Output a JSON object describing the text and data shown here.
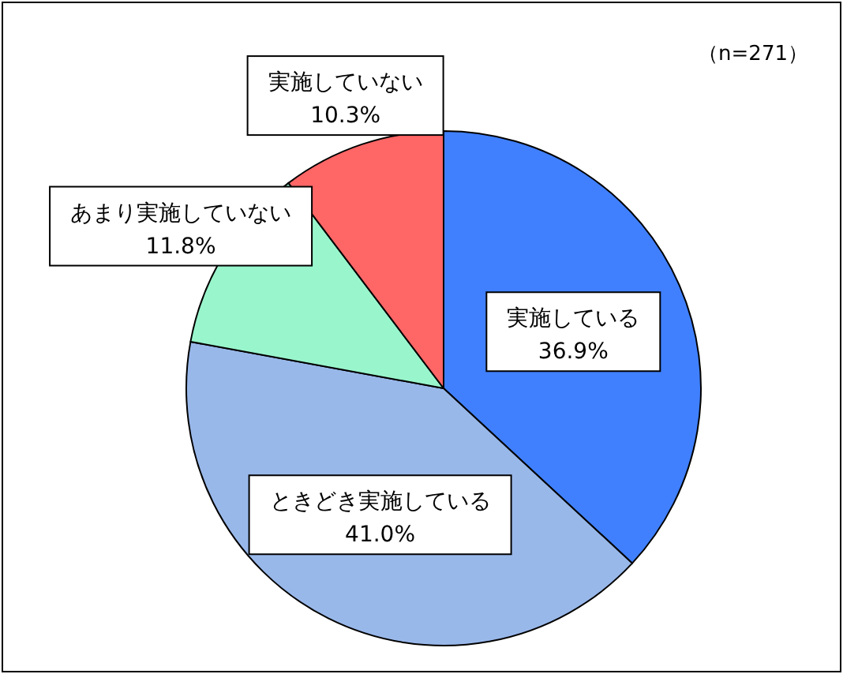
{
  "chart_data": {
    "type": "pie",
    "categories": [
      "実施している",
      "ときどき実施している",
      "あまり実施していない",
      "実施していない"
    ],
    "values": [
      36.9,
      41.0,
      11.8,
      10.3
    ],
    "value_labels": [
      "36.9%",
      "41.0%",
      "11.8%",
      "10.3%"
    ],
    "colors": [
      "#4080ff",
      "#99b8ea",
      "#99f5cc",
      "#ff6666"
    ],
    "annotations": [
      "（n=271）"
    ]
  }
}
